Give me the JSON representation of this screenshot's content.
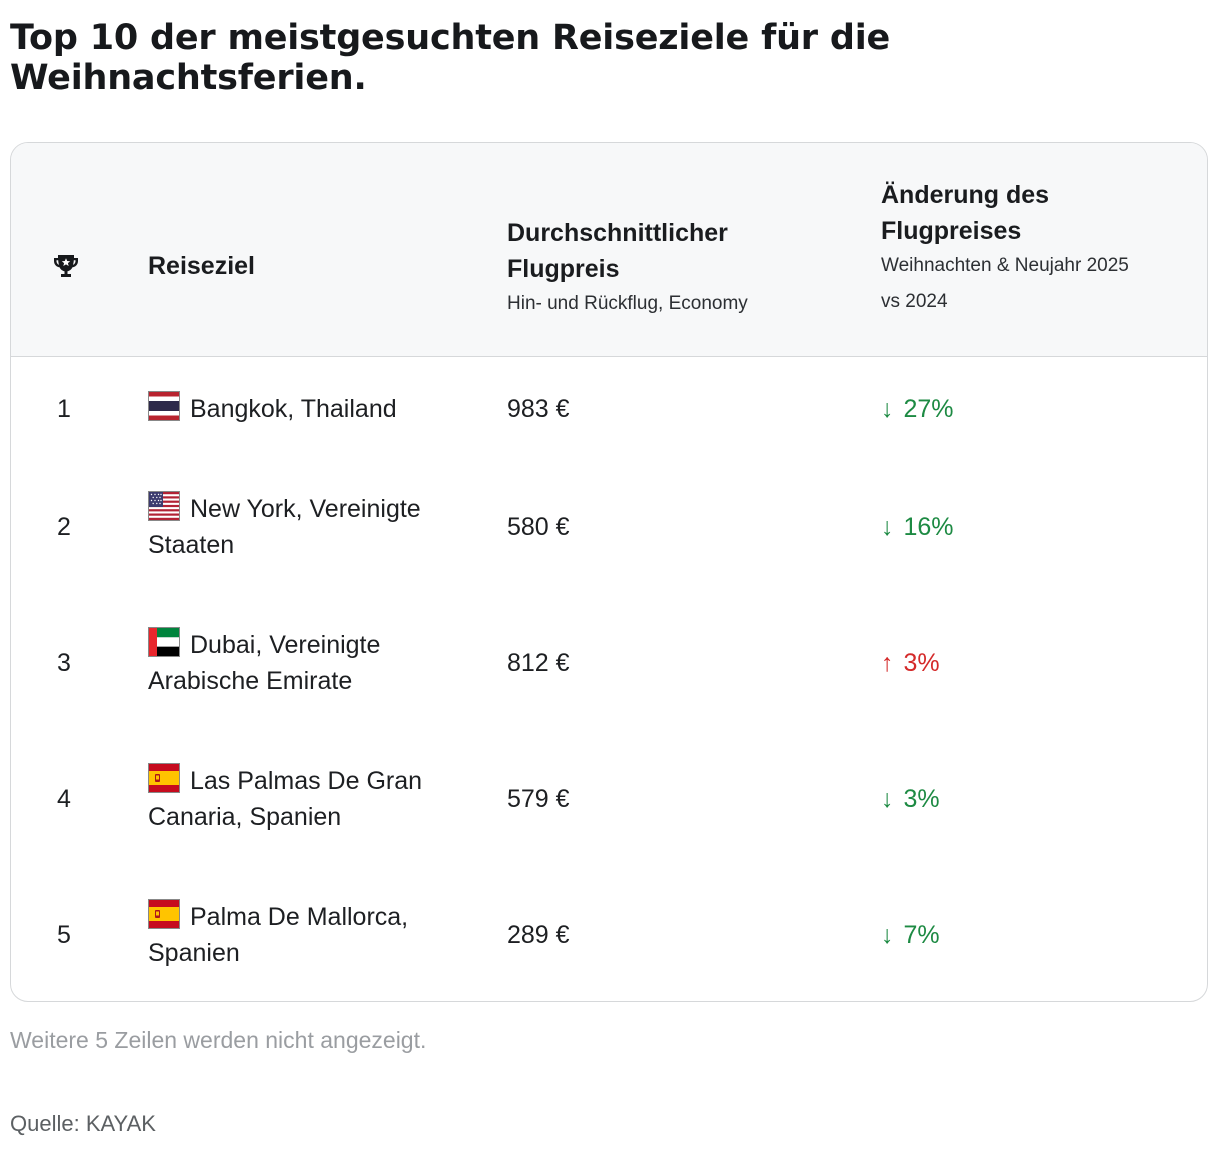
{
  "title": "Top 10 der meistgesuchten Reiseziele für die Weihnachtsferien.",
  "header": {
    "rank_icon": "trophy-icon",
    "destination": "Reiseziel",
    "price_title_line1": "Durchschnittlicher",
    "price_title_line2": "Flugpreis",
    "price_sub": "Hin- und Rückflug, Economy",
    "change_title_line1": "Änderung des",
    "change_title_line2": "Flugpreises",
    "change_sub_line1": "Weihnachten & Neujahr 2025",
    "change_sub_line2": "vs 2024"
  },
  "rows": [
    {
      "rank": "1",
      "flag": "thailand-flag",
      "dest_line1": "Bangkok, Thailand",
      "dest_line2": "",
      "price": "983 €",
      "arrow": "↓",
      "change": "27%",
      "direction": "down"
    },
    {
      "rank": "2",
      "flag": "usa-flag",
      "dest_line1": "New York, Vereinigte",
      "dest_line2": "Staaten",
      "price": "580 €",
      "arrow": "↓",
      "change": "16%",
      "direction": "down"
    },
    {
      "rank": "3",
      "flag": "uae-flag",
      "dest_line1": "Dubai, Vereinigte",
      "dest_line2": "Arabische Emirate",
      "price": "812 €",
      "arrow": "↑",
      "change": "3%",
      "direction": "up"
    },
    {
      "rank": "4",
      "flag": "spain-flag",
      "dest_line1": "Las Palmas De Gran",
      "dest_line2": "Canaria, Spanien",
      "price": "579 €",
      "arrow": "↓",
      "change": "3%",
      "direction": "down"
    },
    {
      "rank": "5",
      "flag": "spain-flag",
      "dest_line1": "Palma De Mallorca,",
      "dest_line2": "Spanien",
      "price": "289 €",
      "arrow": "↓",
      "change": "7%",
      "direction": "down"
    }
  ],
  "footnote": "Weitere 5 Zeilen werden nicht angezeigt.",
  "source": "Quelle: KAYAK",
  "colors": {
    "down": "#1d8a43",
    "up": "#d42a2a"
  }
}
